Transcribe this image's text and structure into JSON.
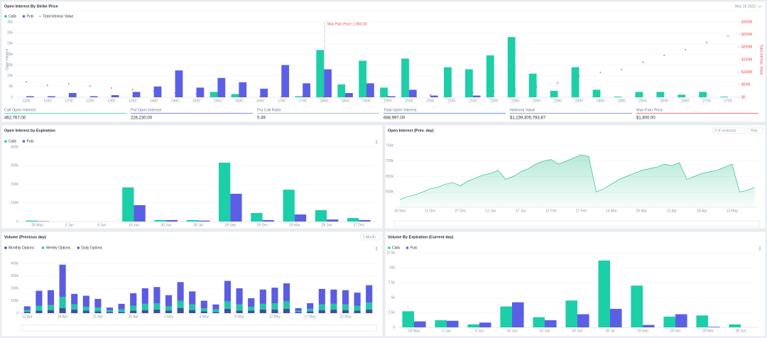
{
  "chart_data": [
    {
      "type": "bar",
      "title": "Open Interest By Strike Price",
      "date_selector": "May 26 2023",
      "annotation": "Max Pain Price: 1,800.00",
      "y_label": "Open Interest",
      "y2_label": "Total Intrinsic Value",
      "categories": [
        "1100",
        "1150",
        "1200",
        "1250",
        "1300",
        "1350",
        "1400",
        "1450",
        "1500",
        "1550",
        "1600",
        "1650",
        "1700",
        "1750",
        "1800",
        "1850",
        "1900",
        "1950",
        "2000",
        "2050",
        "2100",
        "2150",
        "2200",
        "2250",
        "2300",
        "2350",
        "2400",
        "2450",
        "2500",
        "2550",
        "2600",
        "2650",
        "2700",
        "2750"
      ],
      "series": [
        {
          "name": "Calls",
          "color": "#1ccfa8",
          "values": [
            0,
            0,
            0,
            0,
            0,
            0,
            0,
            0,
            0,
            2500,
            1500,
            0,
            0,
            500,
            22000,
            6000,
            17000,
            4500,
            18000,
            0,
            14000,
            13000,
            19500,
            28000,
            11000,
            3000,
            14000,
            3500,
            300,
            2500,
            2500,
            1200,
            2500,
            300
          ]
        },
        {
          "name": "Puts",
          "color": "#5a5fe6",
          "values": [
            500,
            500,
            2000,
            500,
            1000,
            2500,
            5000,
            12500,
            4500,
            9000,
            7000,
            4000,
            15000,
            6500,
            13000,
            2000,
            6500,
            500,
            3500,
            800,
            0,
            800,
            0,
            0,
            0,
            0,
            0,
            0,
            0,
            0,
            0,
            0,
            0,
            0
          ]
        },
        {
          "name": "Total Intrinsic Value",
          "type": "scatter",
          "axis": "y2",
          "color": "#e84c4c",
          "values": [
            62000000.0,
            48000000.0,
            54000000.0,
            45000000.0,
            37000000.0,
            31000000.0,
            24000000.0,
            18000000.0,
            13000000.0,
            9000000.0,
            6000000.0,
            4000000.0,
            2000000.0,
            1000000.0,
            0,
            1000000.0,
            2000000.0,
            4000000.0,
            6000000.0,
            9000000.0,
            13000000.0,
            18000000.0,
            24000000.0,
            31000000.0,
            42000000.0,
            57000000.0,
            85000000.0,
            99000000.0,
            110000000.0,
            139000000.0,
            167000000.0,
            190000000.0,
            218000000.0,
            245000000.0
          ]
        }
      ],
      "ylim": [
        0,
        35000
      ],
      "yticks": [
        0,
        {
          "value": 5000,
          "label": "5k"
        },
        {
          "value": 10000,
          "label": "10k"
        },
        {
          "value": 15000,
          "label": "15k"
        },
        {
          "value": 20000,
          "label": "20k"
        },
        {
          "value": 25000,
          "label": "25k"
        },
        {
          "value": 30000,
          "label": "30k"
        },
        {
          "value": 35000,
          "label": "35k"
        }
      ],
      "y2lim": [
        0,
        300000000
      ],
      "y2ticks": [
        {
          "value": 0,
          "label": "$0"
        },
        {
          "value": 50000000,
          "label": "$50M"
        },
        {
          "value": 100000000,
          "label": "$100M"
        },
        {
          "value": 150000000,
          "label": "$150M"
        },
        {
          "value": 200000000,
          "label": "$200M"
        },
        {
          "value": 250000000,
          "label": "$250M"
        },
        {
          "value": 300000000,
          "label": "$300M"
        }
      ],
      "grid": true
    },
    {
      "type": "bar",
      "title": "Open Interest by Expiration",
      "categories": [
        "26 May",
        "2 Jun",
        "9 Jun",
        "16 Jun",
        "30 Jun",
        "28 Jul",
        "29 Sep",
        "29 Dec",
        "29 Mar",
        "28 Jun",
        "27 Dec"
      ],
      "series": [
        {
          "name": "Calls",
          "color": "#1ccfa8",
          "values": [
            5000,
            0,
            0,
            183000,
            8000,
            8000,
            316000,
            46000,
            171000,
            61000,
            19000
          ]
        },
        {
          "name": "Puts",
          "color": "#5a5fe6",
          "values": [
            2000,
            0,
            0,
            88000,
            8000,
            5000,
            149000,
            8000,
            38000,
            11000,
            8000
          ]
        }
      ],
      "ylim": [
        0,
        400000
      ],
      "yticks": [
        0,
        {
          "value": 100000,
          "label": "100k"
        },
        {
          "value": 200000,
          "label": "200k"
        },
        {
          "value": 300000,
          "label": "300k"
        },
        {
          "value": 400000,
          "label": "400k"
        }
      ],
      "grid": true
    },
    {
      "type": "area",
      "title": "Open Interest (Prev. day)",
      "controls": [
        "# of contracts",
        "Year"
      ],
      "color": "#2bbf8f",
      "categories": [
        "26 Nov",
        null,
        null,
        null,
        "11 Dec",
        null,
        null,
        null,
        "27 Dec",
        null,
        null,
        null,
        "12 Jan",
        null,
        null,
        null,
        "27 Jan",
        null,
        null,
        null,
        "12 Feb",
        null,
        null,
        null,
        "27 Feb",
        null,
        null,
        null,
        "14 Mar",
        null,
        null,
        null,
        "29 Mar",
        null,
        null,
        null,
        "13 Apr",
        null,
        null,
        null,
        "28 Apr",
        null,
        null,
        null,
        "13 May",
        null,
        null,
        null
      ],
      "values": [
        575000,
        585000,
        590000,
        600000,
        610000,
        615000,
        625000,
        630000,
        620000,
        635000,
        645000,
        655000,
        660000,
        670000,
        640000,
        650000,
        665000,
        675000,
        690000,
        700000,
        705000,
        690000,
        700000,
        710000,
        720000,
        715000,
        600000,
        610000,
        625000,
        640000,
        650000,
        660000,
        670000,
        675000,
        680000,
        690000,
        685000,
        695000,
        640000,
        650000,
        660000,
        665000,
        670000,
        680000,
        690000,
        600000,
        605000,
        615000
      ],
      "ylim": [
        550000,
        750000
      ],
      "yticks": [
        {
          "value": 600000,
          "label": "600k"
        },
        {
          "value": 650000,
          "label": "650k"
        },
        {
          "value": 700000,
          "label": "700k"
        },
        {
          "value": 750000,
          "label": "750k"
        }
      ],
      "grid": true
    },
    {
      "type": "bar",
      "stacked": true,
      "title": "Volume (Previous day)",
      "controls": [
        "1 Month"
      ],
      "categories": [
        "13 Apr",
        null,
        null,
        "18 Apr",
        null,
        null,
        "21 Apr",
        null,
        null,
        "26 Apr",
        null,
        null,
        "1 May",
        null,
        null,
        "4 May",
        null,
        null,
        "9 May",
        null,
        null,
        "12 May",
        null,
        null,
        "17 May",
        null,
        null,
        "22 May",
        null,
        null
      ],
      "series": [
        {
          "name": "Monthly Options",
          "color": "#3e4f9e",
          "values": [
            10000,
            20000,
            25000,
            40000,
            30000,
            20000,
            15000,
            10000,
            10000,
            20000,
            25000,
            30000,
            20000,
            40000,
            25000,
            15000,
            10000,
            35000,
            20000,
            20000,
            30000,
            30000,
            35000,
            10000,
            15000,
            25000,
            30000,
            25000,
            20000,
            30000
          ]
        },
        {
          "name": "Weekly Options",
          "color": "#21c7a8",
          "values": [
            15000,
            40000,
            40000,
            90000,
            40000,
            30000,
            30000,
            15000,
            20000,
            40000,
            50000,
            50000,
            35000,
            60000,
            45000,
            25000,
            20000,
            60000,
            50000,
            30000,
            45000,
            50000,
            60000,
            10000,
            20000,
            45000,
            45000,
            45000,
            40000,
            55000
          ]
        },
        {
          "name": "Daily Options",
          "color": "#5b5ce2",
          "values": [
            30000,
            120000,
            120000,
            260000,
            85000,
            90000,
            70000,
            20000,
            45000,
            100000,
            125000,
            130000,
            90000,
            150000,
            105000,
            60000,
            40000,
            165000,
            130000,
            70000,
            115000,
            125000,
            145000,
            20000,
            45000,
            125000,
            115000,
            115000,
            105000,
            140000
          ]
        }
      ],
      "ylim": [
        0,
        400000
      ],
      "yticks": [
        0,
        {
          "value": 100000,
          "label": "100k"
        },
        {
          "value": 200000,
          "label": "200k"
        },
        {
          "value": 300000,
          "label": "300k"
        },
        {
          "value": 400000,
          "label": "400k"
        }
      ],
      "grid": true
    },
    {
      "type": "bar",
      "title": "Volume By Expiration (Current day)",
      "categories": [
        "26 May",
        "2 Jun",
        "9 Jun",
        "16 Jun",
        "23 Jun",
        "30 Jun",
        "28 Jul",
        "29 Sep",
        "29 Dec",
        "29 Mar",
        "28 Jun"
      ],
      "series": [
        {
          "name": "Calls",
          "color": "#1ccfa8",
          "values": [
            2700,
            1200,
            500,
            3500,
            1700,
            4500,
            11200,
            7000,
            1800,
            2000,
            500
          ]
        },
        {
          "name": "Puts",
          "color": "#5a5fe6",
          "values": [
            1000,
            1100,
            800,
            4200,
            1200,
            2200,
            3100,
            400,
            2200,
            100,
            0
          ]
        }
      ],
      "ylim": [
        0,
        12500
      ],
      "yticks": [
        0,
        {
          "value": 2500,
          "label": "2.5k"
        },
        {
          "value": 5000,
          "label": "5k"
        },
        {
          "value": 7500,
          "label": "7.5k"
        },
        {
          "value": 10000,
          "label": "10k"
        },
        {
          "value": 12500,
          "label": "12.5k"
        }
      ],
      "grid": true
    }
  ],
  "stats": [
    {
      "label": "Call Open Interest",
      "value": "462,767.00",
      "color": "#1ccfa8"
    },
    {
      "label": "Put Open Interest",
      "value": "226,230.00",
      "color": "#5a5fe6"
    },
    {
      "label": "Put Call Ratio",
      "value": "0.49",
      "color": "#9aa3b2"
    },
    {
      "label": "Total Open Interest",
      "value": "688,997.00",
      "color": "#4a6fd8"
    },
    {
      "label": "Notional Value",
      "value": "$1,239,305,793.87",
      "color": "#6f7f9e"
    },
    {
      "label": "Max Pain Price",
      "value": "$1,800.00",
      "color": "#e84c4c"
    }
  ]
}
